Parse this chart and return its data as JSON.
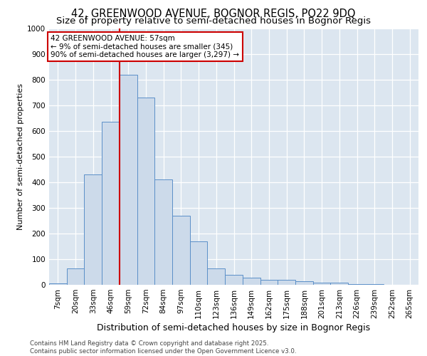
{
  "title1": "42, GREENWOOD AVENUE, BOGNOR REGIS, PO22 9DQ",
  "title2": "Size of property relative to semi-detached houses in Bognor Regis",
  "xlabel": "Distribution of semi-detached houses by size in Bognor Regis",
  "ylabel": "Number of semi-detached properties",
  "categories": [
    "7sqm",
    "20sqm",
    "33sqm",
    "46sqm",
    "59sqm",
    "72sqm",
    "84sqm",
    "97sqm",
    "110sqm",
    "123sqm",
    "136sqm",
    "149sqm",
    "162sqm",
    "175sqm",
    "188sqm",
    "201sqm",
    "213sqm",
    "226sqm",
    "239sqm",
    "252sqm",
    "265sqm"
  ],
  "values": [
    5,
    65,
    430,
    635,
    820,
    730,
    410,
    270,
    170,
    65,
    40,
    28,
    20,
    20,
    15,
    8,
    8,
    3,
    3,
    0,
    0
  ],
  "bar_color": "#ccdaea",
  "bar_edge_color": "#5b8fc8",
  "vline_color": "#cc0000",
  "vline_x_idx": 3.5,
  "annotation_text": "42 GREENWOOD AVENUE: 57sqm\n← 9% of semi-detached houses are smaller (345)\n90% of semi-detached houses are larger (3,297) →",
  "annotation_box_color": "#ffffff",
  "annotation_box_edge": "#cc0000",
  "ylim": [
    0,
    1000
  ],
  "yticks": [
    0,
    100,
    200,
    300,
    400,
    500,
    600,
    700,
    800,
    900,
    1000
  ],
  "bg_color": "#dce6f0",
  "footer_text": "Contains HM Land Registry data © Crown copyright and database right 2025.\nContains public sector information licensed under the Open Government Licence v3.0.",
  "title_fontsize": 10.5,
  "subtitle_fontsize": 9.5,
  "ylabel_fontsize": 8,
  "xlabel_fontsize": 9,
  "tick_fontsize": 7.5,
  "ann_fontsize": 7.5,
  "footer_fontsize": 6.2
}
